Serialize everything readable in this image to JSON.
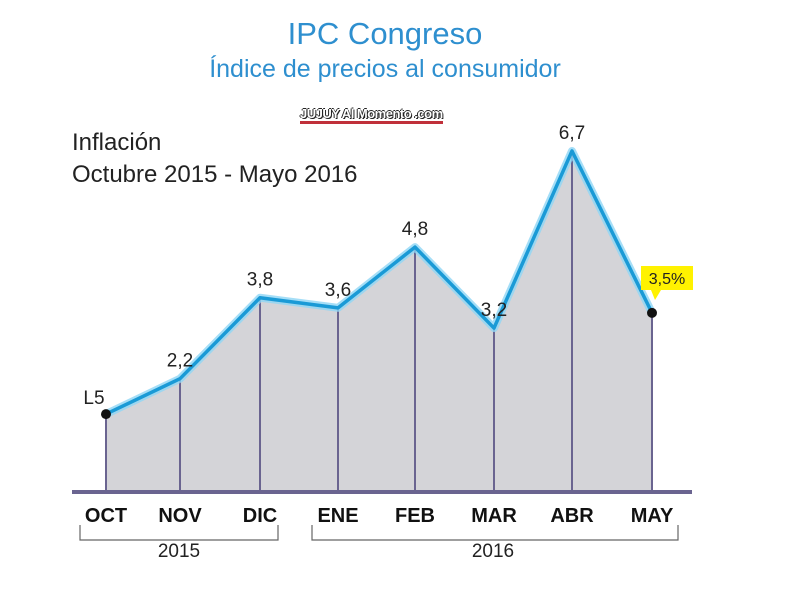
{
  "title": "IPC Congreso",
  "subtitle": "Índice de precios al consumidor",
  "watermark": "JUJUY Al Momento .com",
  "colors": {
    "title": "#2e8fcf",
    "line": "#1a9ad6",
    "fill": "#d4d4d8",
    "highlight": "#fff200"
  },
  "chart_data": {
    "type": "area",
    "title": "Inflación",
    "subtitle": "Octubre 2015 - Mayo 2016",
    "categories": [
      "OCT",
      "NOV",
      "DIC",
      "ENE",
      "FEB",
      "MAR",
      "ABR",
      "MAY"
    ],
    "values": [
      1.5,
      2.2,
      3.8,
      3.6,
      4.8,
      3.2,
      6.7,
      3.5
    ],
    "labels": [
      "L5",
      "2,2",
      "3,8",
      "3,6",
      "4,8",
      "3,2",
      "6,7",
      "3,5%"
    ],
    "year_groups": [
      {
        "label": "2015",
        "from": 0,
        "to": 2
      },
      {
        "label": "2016",
        "from": 3,
        "to": 7
      }
    ],
    "highlight_index": 7,
    "ylim": [
      0,
      7
    ]
  }
}
